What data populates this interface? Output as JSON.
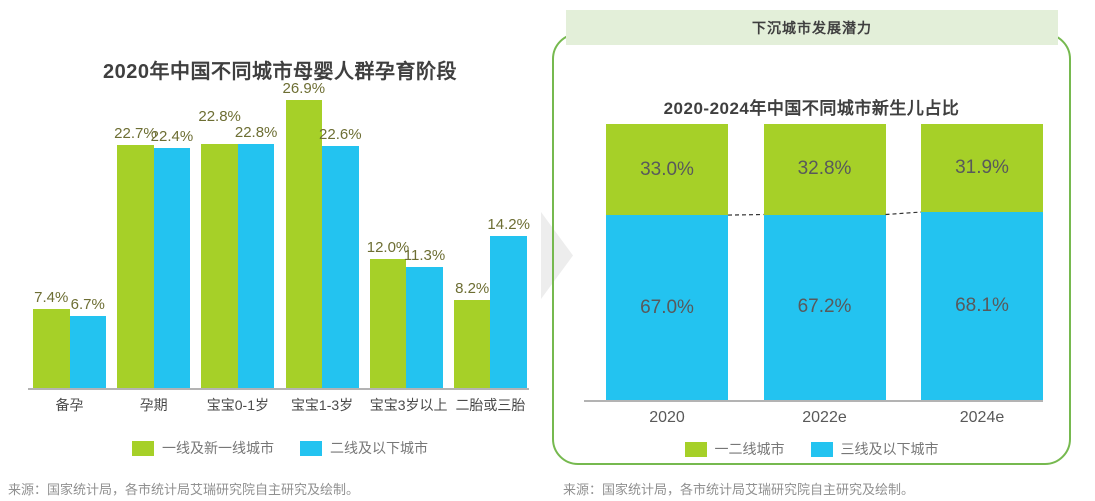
{
  "colors": {
    "series_green": "#a6d028",
    "series_blue": "#23c3f0",
    "value_label": "#6d6e33",
    "panel_border": "#76b94f",
    "banner_bg": "#e3efd9",
    "connector": "#333333",
    "arrow_fill": "#ededed"
  },
  "left_section": {
    "source": "来源：国家统计局，各市统计局艾瑞研究院自主研究及绘制。"
  },
  "right_section": {
    "badge": "下沉城市发展潜力",
    "source": "来源：国家统计局，各市统计局艾瑞研究院自主研究及绘制。"
  },
  "chart_data": [
    {
      "id": "maternal-stages",
      "type": "bar",
      "title": "2020年中国不同城市母婴人群孕育阶段",
      "categories": [
        "备孕",
        "孕期",
        "宝宝0-1岁",
        "宝宝1-3岁",
        "宝宝3岁以上",
        "二胎或三胎"
      ],
      "series": [
        {
          "name": "一线及新一线城市",
          "color_key": "series_green",
          "values": [
            7.4,
            22.7,
            22.8,
            26.9,
            12.0,
            8.2
          ],
          "labels": [
            "7.4%",
            "22.7%",
            "22.8%",
            "26.9%",
            "12.0%",
            "8.2%"
          ]
        },
        {
          "name": "二线及以下城市",
          "color_key": "series_blue",
          "values": [
            6.7,
            22.4,
            22.8,
            22.6,
            11.3,
            14.2
          ],
          "labels": [
            "6.7%",
            "22.4%",
            "22.8%",
            "22.6%",
            "11.3%",
            "14.2%"
          ]
        }
      ],
      "value_suffix": "%",
      "xlabel": "",
      "ylabel": "",
      "ylim": [
        0,
        28
      ],
      "grid": false,
      "legend_position": "bottom"
    },
    {
      "id": "newborn-share",
      "type": "stacked-bar",
      "title": "2020-2024年中国不同城市新生儿占比",
      "categories": [
        "2020",
        "2022e",
        "2024e"
      ],
      "series": [
        {
          "name": "一二线城市",
          "color_key": "series_green",
          "values": [
            33.0,
            32.8,
            31.9
          ],
          "labels": [
            "33.0%",
            "32.8%",
            "31.9%"
          ]
        },
        {
          "name": "三线及以下城市",
          "color_key": "series_blue",
          "values": [
            67.0,
            67.2,
            68.1
          ],
          "labels": [
            "67.0%",
            "67.2%",
            "68.1%"
          ]
        }
      ],
      "value_suffix": "%",
      "xlabel": "",
      "ylabel": "",
      "ylim": [
        0,
        100
      ],
      "grid": false,
      "legend_position": "bottom"
    }
  ]
}
